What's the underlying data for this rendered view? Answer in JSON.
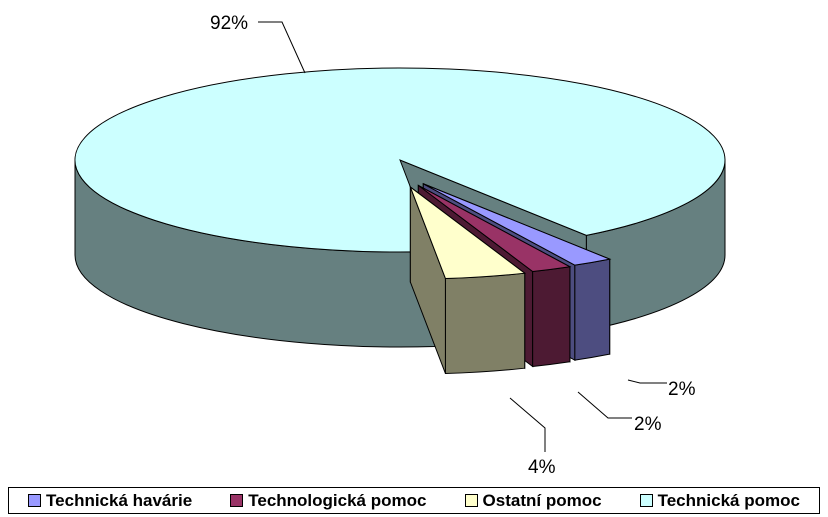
{
  "chart_data": {
    "type": "pie",
    "categories": [
      "Technická havárie",
      "Technologická pomoc",
      "Ostatní pomoc",
      "Technická pomoc"
    ],
    "values": [
      2,
      2,
      4,
      92
    ],
    "value_labels": [
      "2%",
      "2%",
      "4%",
      "92%"
    ],
    "colors": [
      "#9999ff",
      "#993366",
      "#ffffcc",
      "#ccffff"
    ],
    "legend": "bottom"
  }
}
